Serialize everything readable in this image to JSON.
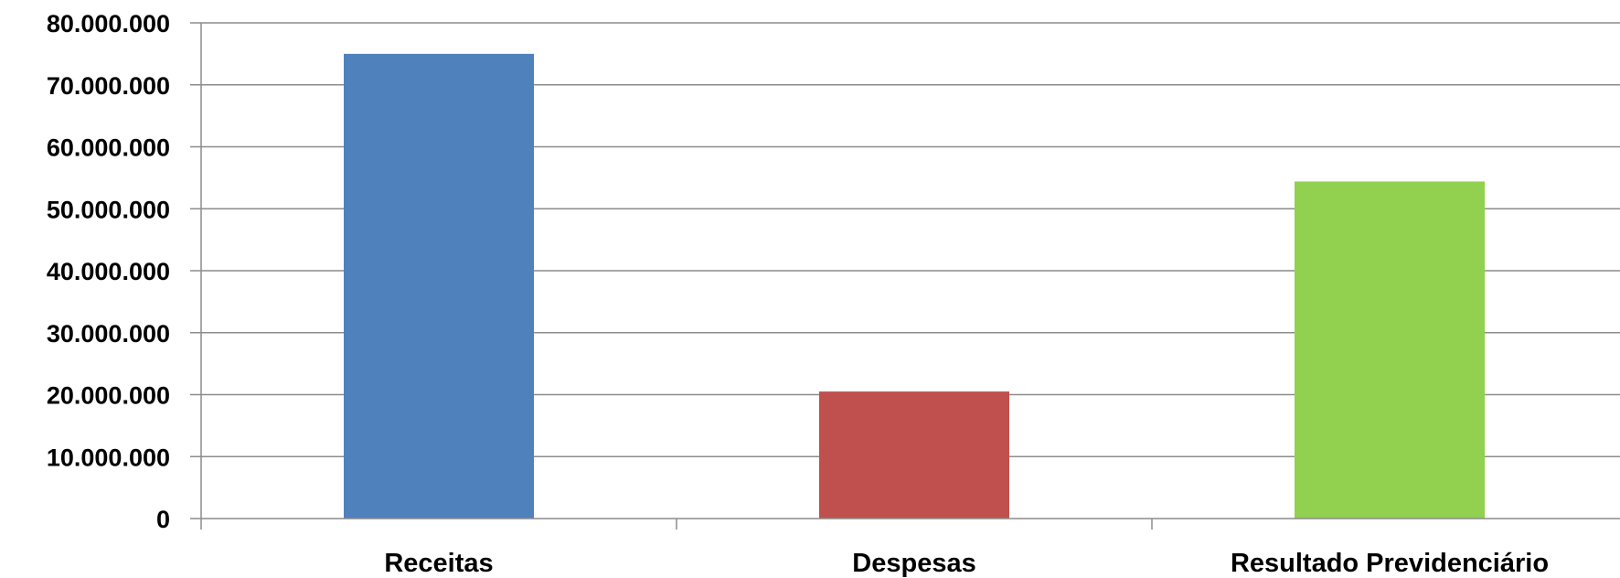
{
  "chart_data": {
    "type": "bar",
    "title": "",
    "xlabel": "",
    "ylabel": "",
    "categories": [
      "Receitas",
      "Despesas",
      "Resultado Previdenciário"
    ],
    "values": [
      75000000,
      20500000,
      54400000
    ],
    "colors": [
      "#4f81bd",
      "#c0504d",
      "#92d050"
    ],
    "ylim": [
      0,
      80000000
    ],
    "yticks": [
      0,
      10000000,
      20000000,
      30000000,
      40000000,
      50000000,
      60000000,
      70000000,
      80000000
    ],
    "ytick_labels": [
      "0",
      "10.000.000",
      "20.000.000",
      "30.000.000",
      "40.000.000",
      "50.000.000",
      "60.000.000",
      "70.000.000",
      "80.000.000"
    ],
    "grid": true,
    "legend": "none"
  }
}
